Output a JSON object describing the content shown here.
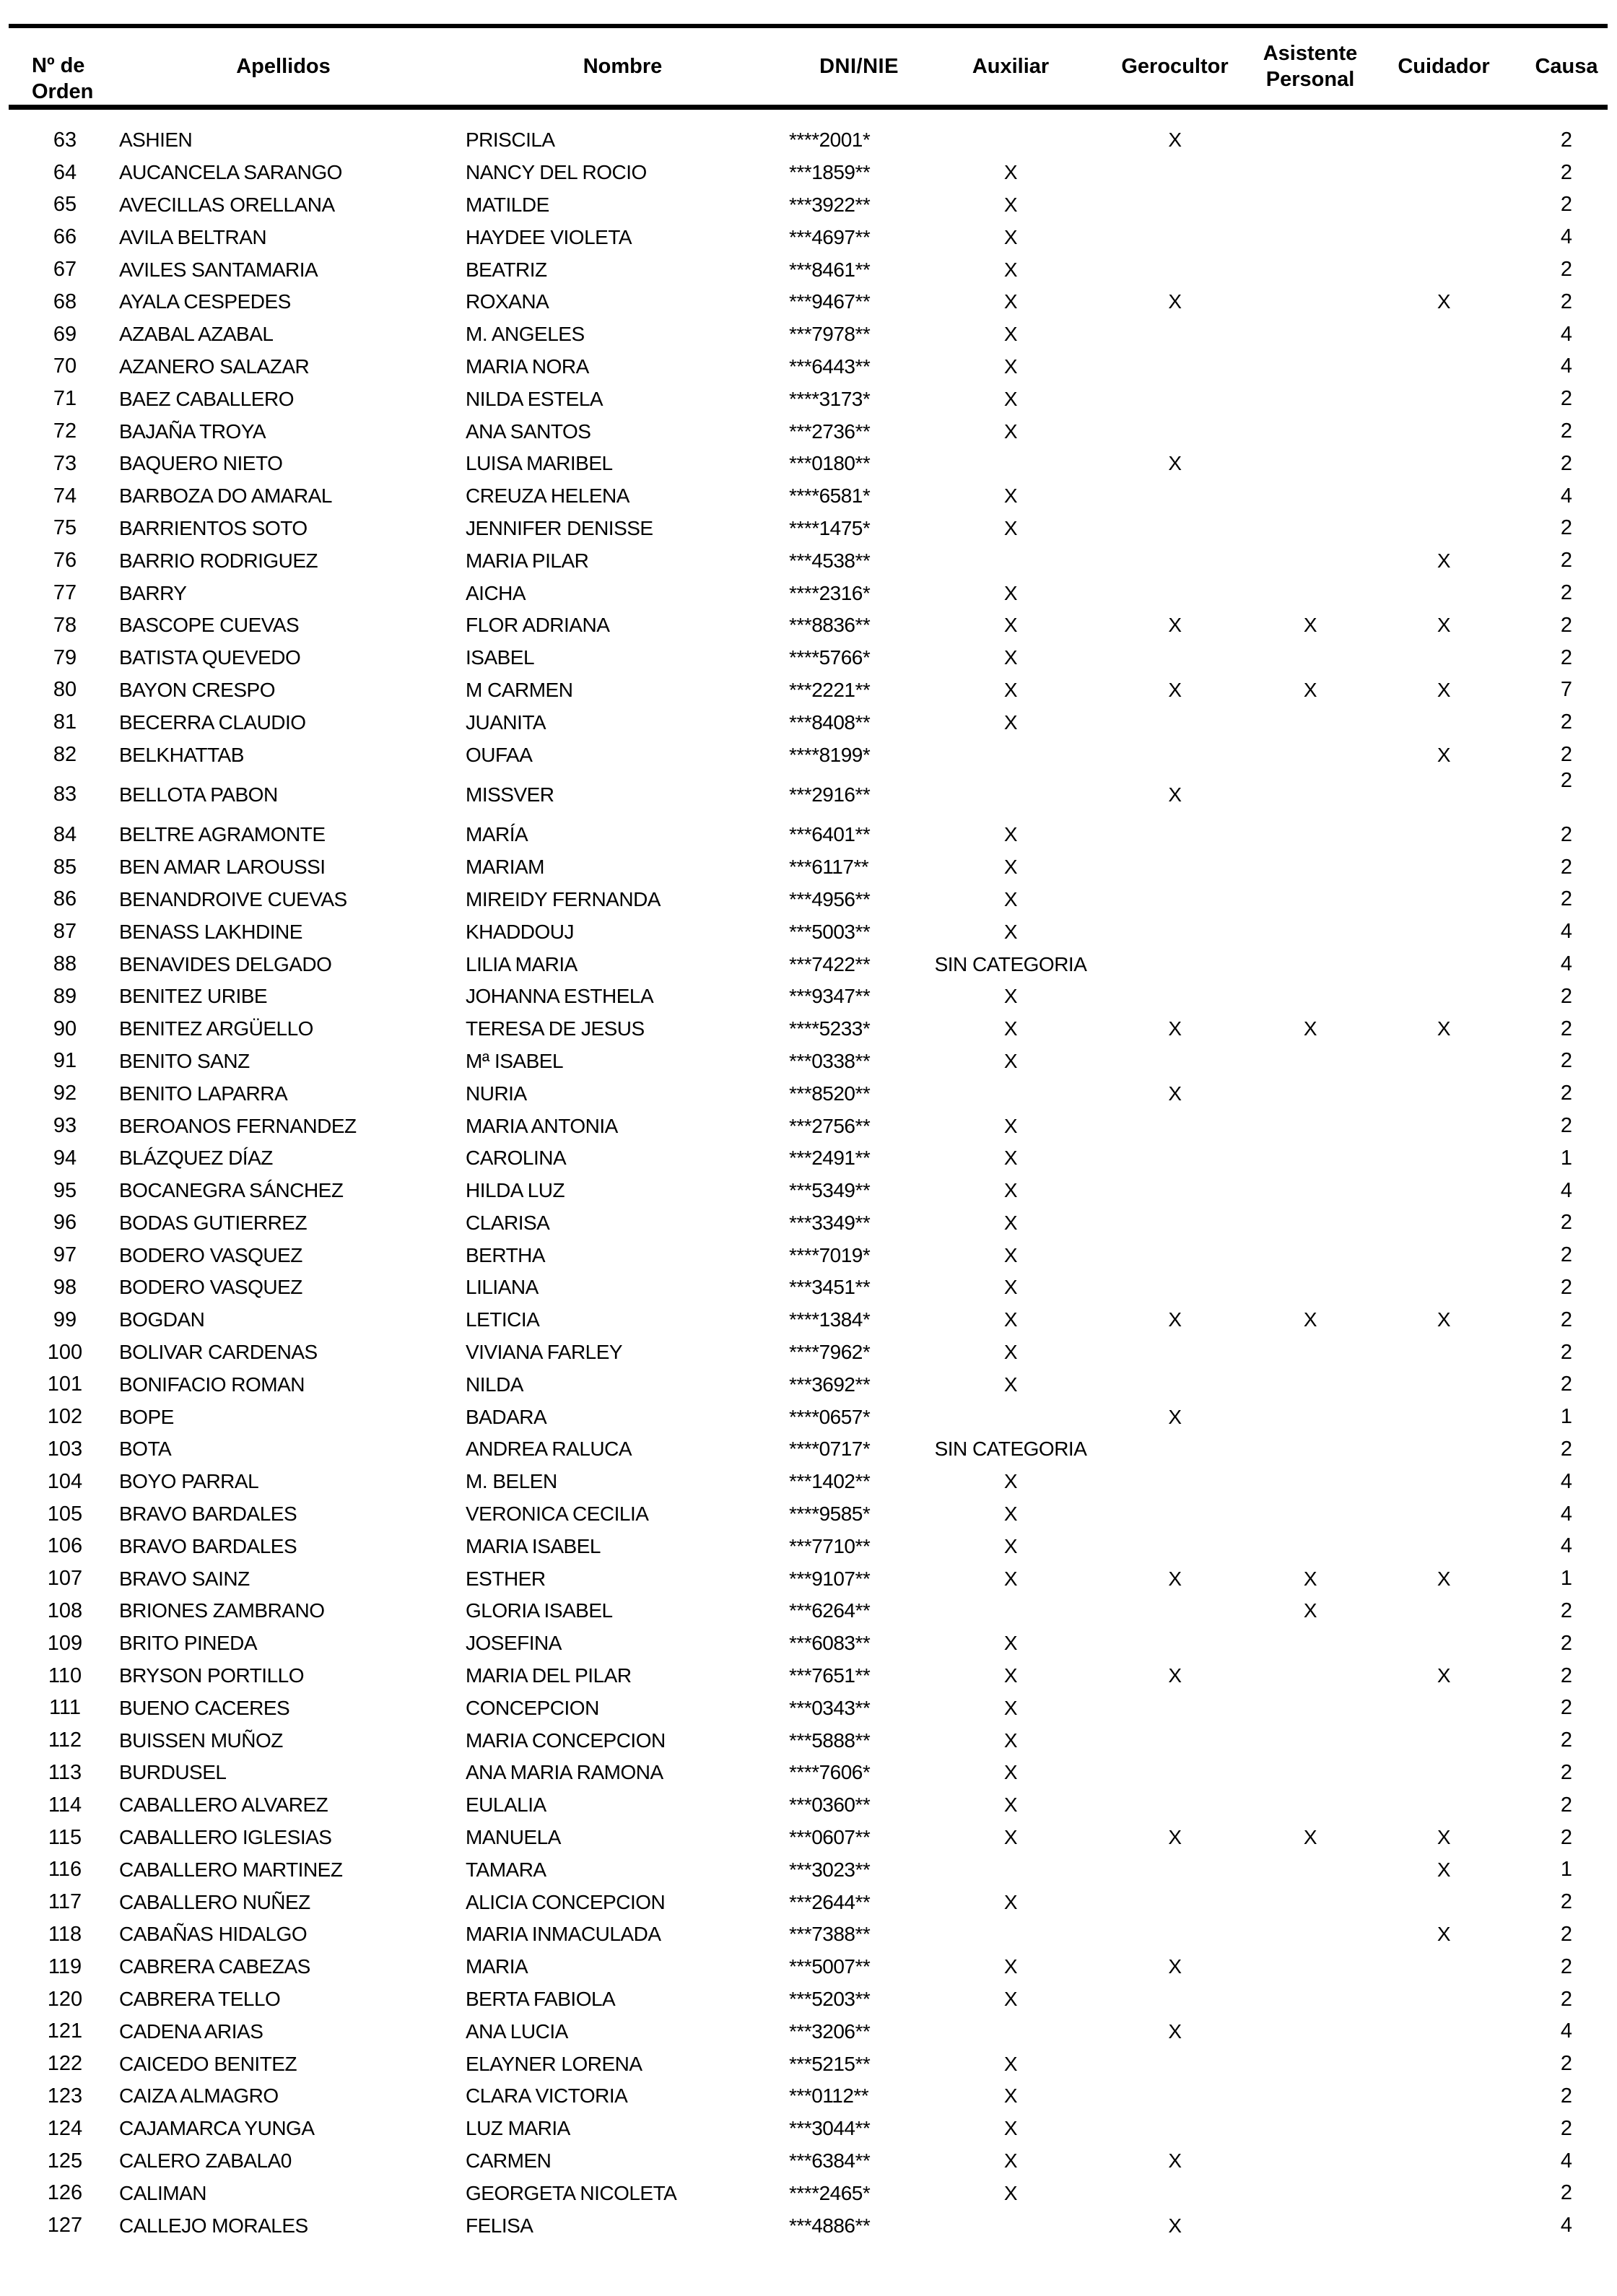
{
  "table": {
    "headers": {
      "order": "Nº de\nOrden",
      "apellidos": "Apellidos",
      "nombre": "Nombre",
      "dni": "DNI/NIE",
      "auxiliar": "Auxiliar",
      "gerocultor": "Gerocultor",
      "asistente_personal": "Asistente\nPersonal",
      "cuidador": "Cuidador",
      "causa": "Causa"
    },
    "mark_symbol": "X",
    "no_category_label": "SIN CATEGORIA",
    "rows": [
      {
        "order": "63",
        "apellidos": "ASHIEN",
        "nombre": "PRISCILA",
        "dni": "****2001*",
        "auxiliar": "",
        "gerocultor": "X",
        "asistente_personal": "",
        "cuidador": "",
        "causa": "2"
      },
      {
        "order": "64",
        "apellidos": "AUCANCELA SARANGO",
        "nombre": "NANCY DEL ROCIO",
        "dni": "***1859**",
        "auxiliar": "X",
        "gerocultor": "",
        "asistente_personal": "",
        "cuidador": "",
        "causa": "2"
      },
      {
        "order": "65",
        "apellidos": "AVECILLAS ORELLANA",
        "nombre": "MATILDE",
        "dni": "***3922**",
        "auxiliar": "X",
        "gerocultor": "",
        "asistente_personal": "",
        "cuidador": "",
        "causa": "2"
      },
      {
        "order": "66",
        "apellidos": "AVILA BELTRAN",
        "nombre": "HAYDEE VIOLETA",
        "dni": "***4697**",
        "auxiliar": "X",
        "gerocultor": "",
        "asistente_personal": "",
        "cuidador": "",
        "causa": "4"
      },
      {
        "order": "67",
        "apellidos": "AVILES SANTAMARIA",
        "nombre": "BEATRIZ",
        "dni": "***8461**",
        "auxiliar": "X",
        "gerocultor": "",
        "asistente_personal": "",
        "cuidador": "",
        "causa": "2"
      },
      {
        "order": "68",
        "apellidos": "AYALA CESPEDES",
        "nombre": "ROXANA",
        "dni": "***9467**",
        "auxiliar": "X",
        "gerocultor": "X",
        "asistente_personal": "",
        "cuidador": "X",
        "causa": "2"
      },
      {
        "order": "69",
        "apellidos": "AZABAL AZABAL",
        "nombre": "M. ANGELES",
        "dni": "***7978**",
        "auxiliar": "X",
        "gerocultor": "",
        "asistente_personal": "",
        "cuidador": "",
        "causa": "4"
      },
      {
        "order": "70",
        "apellidos": "AZANERO SALAZAR",
        "nombre": "MARIA NORA",
        "dni": "***6443**",
        "auxiliar": "X",
        "gerocultor": "",
        "asistente_personal": "",
        "cuidador": "",
        "causa": "4"
      },
      {
        "order": "71",
        "apellidos": "BAEZ CABALLERO",
        "nombre": "NILDA ESTELA",
        "dni": "****3173*",
        "auxiliar": "X",
        "gerocultor": "",
        "asistente_personal": "",
        "cuidador": "",
        "causa": "2"
      },
      {
        "order": "72",
        "apellidos": "BAJAÑA TROYA",
        "nombre": "ANA SANTOS",
        "dni": "***2736**",
        "auxiliar": "X",
        "gerocultor": "",
        "asistente_personal": "",
        "cuidador": "",
        "causa": "2"
      },
      {
        "order": "73",
        "apellidos": "BAQUERO NIETO",
        "nombre": "LUISA MARIBEL",
        "dni": "***0180**",
        "auxiliar": "",
        "gerocultor": "X",
        "asistente_personal": "",
        "cuidador": "",
        "causa": "2"
      },
      {
        "order": "74",
        "apellidos": "BARBOZA DO AMARAL",
        "nombre": "CREUZA HELENA",
        "dni": "****6581*",
        "auxiliar": "X",
        "gerocultor": "",
        "asistente_personal": "",
        "cuidador": "",
        "causa": "4"
      },
      {
        "order": "75",
        "apellidos": "BARRIENTOS SOTO",
        "nombre": "JENNIFER DENISSE",
        "dni": "****1475*",
        "auxiliar": "X",
        "gerocultor": "",
        "asistente_personal": "",
        "cuidador": "",
        "causa": "2"
      },
      {
        "order": "76",
        "apellidos": "BARRIO RODRIGUEZ",
        "nombre": "MARIA PILAR",
        "dni": "***4538**",
        "auxiliar": "",
        "gerocultor": "",
        "asistente_personal": "",
        "cuidador": "X",
        "causa": "2"
      },
      {
        "order": "77",
        "apellidos": "BARRY",
        "nombre": "AICHA",
        "dni": "****2316*",
        "auxiliar": "X",
        "gerocultor": "",
        "asistente_personal": "",
        "cuidador": "",
        "causa": "2"
      },
      {
        "order": "78",
        "apellidos": "BASCOPE CUEVAS",
        "nombre": "FLOR ADRIANA",
        "dni": "***8836**",
        "auxiliar": "X",
        "gerocultor": "X",
        "asistente_personal": "X",
        "cuidador": "X",
        "causa": "2"
      },
      {
        "order": "79",
        "apellidos": "BATISTA QUEVEDO",
        "nombre": "ISABEL",
        "dni": "****5766*",
        "auxiliar": "X",
        "gerocultor": "",
        "asistente_personal": "",
        "cuidador": "",
        "causa": "2"
      },
      {
        "order": "80",
        "apellidos": "BAYON CRESPO",
        "nombre": "M CARMEN",
        "dni": "***2221**",
        "auxiliar": "X",
        "gerocultor": "X",
        "asistente_personal": "X",
        "cuidador": "X",
        "causa": "7"
      },
      {
        "order": "81",
        "apellidos": "BECERRA CLAUDIO",
        "nombre": "JUANITA",
        "dni": "***8408**",
        "auxiliar": "X",
        "gerocultor": "",
        "asistente_personal": "",
        "cuidador": "",
        "causa": "2"
      },
      {
        "order": "82",
        "apellidos": "BELKHATTAB",
        "nombre": "OUFAA",
        "dni": "****8199*",
        "auxiliar": "",
        "gerocultor": "",
        "asistente_personal": "",
        "cuidador": "X",
        "causa": "2"
      },
      {
        "order": "83",
        "apellidos": "BELLOTA PABON",
        "nombre": "MISSVER",
        "dni": "***2916**",
        "auxiliar": "",
        "gerocultor": "X",
        "asistente_personal": "",
        "cuidador": "",
        "causa": "2",
        "raised_causa": true
      },
      {
        "order": "84",
        "apellidos": "BELTRE AGRAMONTE",
        "nombre": "MARÍA",
        "dni": "***6401**",
        "auxiliar": "X",
        "gerocultor": "",
        "asistente_personal": "",
        "cuidador": "",
        "causa": "2"
      },
      {
        "order": "85",
        "apellidos": "BEN AMAR LAROUSSI",
        "nombre": "MARIAM",
        "dni": "***6117**",
        "auxiliar": "X",
        "gerocultor": "",
        "asistente_personal": "",
        "cuidador": "",
        "causa": "2"
      },
      {
        "order": "86",
        "apellidos": "BENANDROIVE CUEVAS",
        "nombre": "MIREIDY FERNANDA",
        "dni": "***4956**",
        "auxiliar": "X",
        "gerocultor": "",
        "asistente_personal": "",
        "cuidador": "",
        "causa": "2"
      },
      {
        "order": "87",
        "apellidos": "BENASS LAKHDINE",
        "nombre": "KHADDOUJ",
        "dni": "***5003**",
        "auxiliar": "X",
        "gerocultor": "",
        "asistente_personal": "",
        "cuidador": "",
        "causa": "4"
      },
      {
        "order": "88",
        "apellidos": "BENAVIDES DELGADO",
        "nombre": "LILIA MARIA",
        "dni": "***7422**",
        "auxiliar": "SIN CATEGORIA",
        "gerocultor": "",
        "asistente_personal": "",
        "cuidador": "",
        "causa": "4"
      },
      {
        "order": "89",
        "apellidos": "BENITEZ URIBE",
        "nombre": "JOHANNA ESTHELA",
        "dni": "***9347**",
        "auxiliar": "X",
        "gerocultor": "",
        "asistente_personal": "",
        "cuidador": "",
        "causa": "2"
      },
      {
        "order": "90",
        "apellidos": "BENITEZ ARGÜELLO",
        "nombre": "TERESA DE JESUS",
        "dni": "****5233*",
        "auxiliar": "X",
        "gerocultor": "X",
        "asistente_personal": "X",
        "cuidador": "X",
        "causa": "2"
      },
      {
        "order": "91",
        "apellidos": "BENITO SANZ",
        "nombre": "Mª ISABEL",
        "dni": "***0338**",
        "auxiliar": "X",
        "gerocultor": "",
        "asistente_personal": "",
        "cuidador": "",
        "causa": "2"
      },
      {
        "order": "92",
        "apellidos": "BENITO LAPARRA",
        "nombre": "NURIA",
        "dni": "***8520**",
        "auxiliar": "",
        "gerocultor": "X",
        "asistente_personal": "",
        "cuidador": "",
        "causa": "2"
      },
      {
        "order": "93",
        "apellidos": "BEROANOS FERNANDEZ",
        "nombre": "MARIA ANTONIA",
        "dni": "***2756**",
        "auxiliar": "X",
        "gerocultor": "",
        "asistente_personal": "",
        "cuidador": "",
        "causa": "2"
      },
      {
        "order": "94",
        "apellidos": "BLÁZQUEZ DÍAZ",
        "nombre": "CAROLINA",
        "dni": "***2491**",
        "auxiliar": "X",
        "gerocultor": "",
        "asistente_personal": "",
        "cuidador": "",
        "causa": "1"
      },
      {
        "order": "95",
        "apellidos": "BOCANEGRA SÁNCHEZ",
        "nombre": "HILDA LUZ",
        "dni": "***5349**",
        "auxiliar": "X",
        "gerocultor": "",
        "asistente_personal": "",
        "cuidador": "",
        "causa": "4"
      },
      {
        "order": "96",
        "apellidos": "BODAS GUTIERREZ",
        "nombre": "CLARISA",
        "dni": "***3349**",
        "auxiliar": "X",
        "gerocultor": "",
        "asistente_personal": "",
        "cuidador": "",
        "causa": "2"
      },
      {
        "order": "97",
        "apellidos": "BODERO VASQUEZ",
        "nombre": "BERTHA",
        "dni": "****7019*",
        "auxiliar": "X",
        "gerocultor": "",
        "asistente_personal": "",
        "cuidador": "",
        "causa": "2"
      },
      {
        "order": "98",
        "apellidos": "BODERO VASQUEZ",
        "nombre": "LILIANA",
        "dni": "***3451**",
        "auxiliar": "X",
        "gerocultor": "",
        "asistente_personal": "",
        "cuidador": "",
        "causa": "2"
      },
      {
        "order": "99",
        "apellidos": "BOGDAN",
        "nombre": "LETICIA",
        "dni": "****1384*",
        "auxiliar": "X",
        "gerocultor": "X",
        "asistente_personal": "X",
        "cuidador": "X",
        "causa": "2"
      },
      {
        "order": "100",
        "apellidos": "BOLIVAR CARDENAS",
        "nombre": "VIVIANA FARLEY",
        "dni": "****7962*",
        "auxiliar": "X",
        "gerocultor": "",
        "asistente_personal": "",
        "cuidador": "",
        "causa": "2"
      },
      {
        "order": "101",
        "apellidos": "BONIFACIO ROMAN",
        "nombre": "NILDA",
        "dni": "***3692**",
        "auxiliar": "X",
        "gerocultor": "",
        "asistente_personal": "",
        "cuidador": "",
        "causa": "2"
      },
      {
        "order": "102",
        "apellidos": "BOPE",
        "nombre": "BADARA",
        "dni": "****0657*",
        "auxiliar": "",
        "gerocultor": "X",
        "asistente_personal": "",
        "cuidador": "",
        "causa": "1"
      },
      {
        "order": "103",
        "apellidos": "BOTA",
        "nombre": "ANDREA RALUCA",
        "dni": "****0717*",
        "auxiliar": "SIN CATEGORIA",
        "gerocultor": "",
        "asistente_personal": "",
        "cuidador": "",
        "causa": "2"
      },
      {
        "order": "104",
        "apellidos": "BOYO PARRAL",
        "nombre": "M. BELEN",
        "dni": "***1402**",
        "auxiliar": "X",
        "gerocultor": "",
        "asistente_personal": "",
        "cuidador": "",
        "causa": "4"
      },
      {
        "order": "105",
        "apellidos": "BRAVO BARDALES",
        "nombre": "VERONICA CECILIA",
        "dni": "****9585*",
        "auxiliar": "X",
        "gerocultor": "",
        "asistente_personal": "",
        "cuidador": "",
        "causa": "4"
      },
      {
        "order": "106",
        "apellidos": "BRAVO BARDALES",
        "nombre": "MARIA ISABEL",
        "dni": "***7710**",
        "auxiliar": "X",
        "gerocultor": "",
        "asistente_personal": "",
        "cuidador": "",
        "causa": "4"
      },
      {
        "order": "107",
        "apellidos": "BRAVO SAINZ",
        "nombre": "ESTHER",
        "dni": "***9107**",
        "auxiliar": "X",
        "gerocultor": "X",
        "asistente_personal": "X",
        "cuidador": "X",
        "causa": "1"
      },
      {
        "order": "108",
        "apellidos": "BRIONES ZAMBRANO",
        "nombre": "GLORIA ISABEL",
        "dni": "***6264**",
        "auxiliar": "",
        "gerocultor": "",
        "asistente_personal": "X",
        "cuidador": "",
        "causa": "2"
      },
      {
        "order": "109",
        "apellidos": "BRITO PINEDA",
        "nombre": "JOSEFINA",
        "dni": "***6083**",
        "auxiliar": "X",
        "gerocultor": "",
        "asistente_personal": "",
        "cuidador": "",
        "causa": "2"
      },
      {
        "order": "110",
        "apellidos": "BRYSON PORTILLO",
        "nombre": "MARIA DEL PILAR",
        "dni": "***7651**",
        "auxiliar": "X",
        "gerocultor": "X",
        "asistente_personal": "",
        "cuidador": "X",
        "causa": "2"
      },
      {
        "order": "111",
        "apellidos": "BUENO CACERES",
        "nombre": "CONCEPCION",
        "dni": "***0343**",
        "auxiliar": "X",
        "gerocultor": "",
        "asistente_personal": "",
        "cuidador": "",
        "causa": "2"
      },
      {
        "order": "112",
        "apellidos": "BUISSEN MUÑOZ",
        "nombre": "MARIA CONCEPCION",
        "dni": "***5888**",
        "auxiliar": "X",
        "gerocultor": "",
        "asistente_personal": "",
        "cuidador": "",
        "causa": "2"
      },
      {
        "order": "113",
        "apellidos": "BURDUSEL",
        "nombre": "ANA MARIA RAMONA",
        "dni": "****7606*",
        "auxiliar": "X",
        "gerocultor": "",
        "asistente_personal": "",
        "cuidador": "",
        "causa": "2"
      },
      {
        "order": "114",
        "apellidos": "CABALLERO ALVAREZ",
        "nombre": "EULALIA",
        "dni": "***0360**",
        "auxiliar": "X",
        "gerocultor": "",
        "asistente_personal": "",
        "cuidador": "",
        "causa": "2"
      },
      {
        "order": "115",
        "apellidos": "CABALLERO IGLESIAS",
        "nombre": "MANUELA",
        "dni": "***0607**",
        "auxiliar": "X",
        "gerocultor": "X",
        "asistente_personal": "X",
        "cuidador": "X",
        "causa": "2"
      },
      {
        "order": "116",
        "apellidos": "CABALLERO MARTINEZ",
        "nombre": "TAMARA",
        "dni": "***3023**",
        "auxiliar": "",
        "gerocultor": "",
        "asistente_personal": "",
        "cuidador": "X",
        "causa": "1"
      },
      {
        "order": "117",
        "apellidos": "CABALLERO NUÑEZ",
        "nombre": "ALICIA CONCEPCION",
        "dni": "***2644**",
        "auxiliar": "X",
        "gerocultor": "",
        "asistente_personal": "",
        "cuidador": "",
        "causa": "2"
      },
      {
        "order": "118",
        "apellidos": "CABAÑAS HIDALGO",
        "nombre": "MARIA INMACULADA",
        "dni": "***7388**",
        "auxiliar": "",
        "gerocultor": "",
        "asistente_personal": "",
        "cuidador": "X",
        "causa": "2"
      },
      {
        "order": "119",
        "apellidos": "CABRERA CABEZAS",
        "nombre": "MARIA",
        "dni": "***5007**",
        "auxiliar": "X",
        "gerocultor": "X",
        "asistente_personal": "",
        "cuidador": "",
        "causa": "2"
      },
      {
        "order": "120",
        "apellidos": "CABRERA TELLO",
        "nombre": "BERTA FABIOLA",
        "dni": "***5203**",
        "auxiliar": "X",
        "gerocultor": "",
        "asistente_personal": "",
        "cuidador": "",
        "causa": "2"
      },
      {
        "order": "121",
        "apellidos": "CADENA ARIAS",
        "nombre": "ANA LUCIA",
        "dni": "***3206**",
        "auxiliar": "",
        "gerocultor": "X",
        "asistente_personal": "",
        "cuidador": "",
        "causa": "4"
      },
      {
        "order": "122",
        "apellidos": "CAICEDO BENITEZ",
        "nombre": "ELAYNER LORENA",
        "dni": "***5215**",
        "auxiliar": "X",
        "gerocultor": "",
        "asistente_personal": "",
        "cuidador": "",
        "causa": "2"
      },
      {
        "order": "123",
        "apellidos": "CAIZA ALMAGRO",
        "nombre": "CLARA VICTORIA",
        "dni": "***0112**",
        "auxiliar": "X",
        "gerocultor": "",
        "asistente_personal": "",
        "cuidador": "",
        "causa": "2"
      },
      {
        "order": "124",
        "apellidos": "CAJAMARCA YUNGA",
        "nombre": "LUZ MARIA",
        "dni": "***3044**",
        "auxiliar": "X",
        "gerocultor": "",
        "asistente_personal": "",
        "cuidador": "",
        "causa": "2"
      },
      {
        "order": "125",
        "apellidos": "CALERO ZABALA0",
        "nombre": "CARMEN",
        "dni": "***6384**",
        "auxiliar": "X",
        "gerocultor": "X",
        "asistente_personal": "",
        "cuidador": "",
        "causa": "4"
      },
      {
        "order": "126",
        "apellidos": "CALIMAN",
        "nombre": "GEORGETA NICOLETA",
        "dni": "****2465*",
        "auxiliar": "X",
        "gerocultor": "",
        "asistente_personal": "",
        "cuidador": "",
        "causa": "2"
      },
      {
        "order": "127",
        "apellidos": "CALLEJO MORALES",
        "nombre": "FELISA",
        "dni": "***4886**",
        "auxiliar": "",
        "gerocultor": "X",
        "asistente_personal": "",
        "cuidador": "",
        "causa": "4"
      }
    ]
  }
}
